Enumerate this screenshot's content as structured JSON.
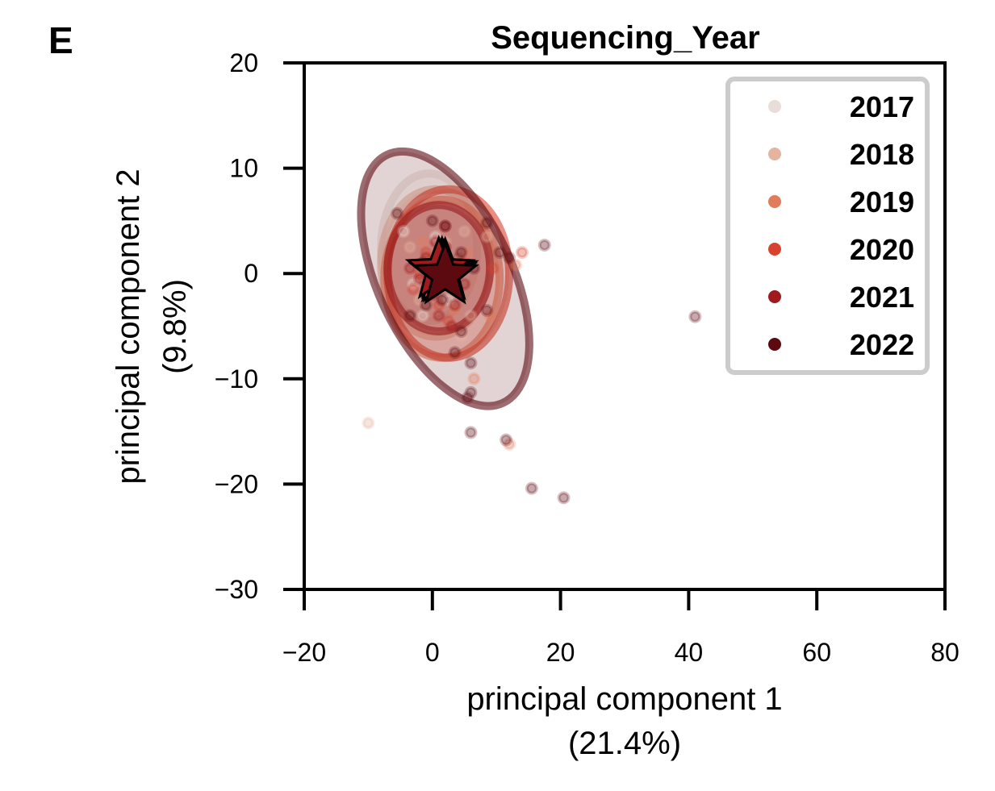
{
  "panel_label": "E",
  "chart_data": {
    "type": "scatter",
    "title": "Sequencing_Year",
    "xlabel": "principal component 1",
    "xlabel_sub": "(21.4%)",
    "ylabel": "principal component 2",
    "ylabel_sub": "(9.8%)",
    "xlim": [
      -20,
      80
    ],
    "ylim": [
      -30,
      20
    ],
    "xticks": [
      -20,
      0,
      20,
      40,
      60,
      80
    ],
    "yticks": [
      20,
      10,
      0,
      -10,
      -20,
      -30
    ],
    "xtick_labels": [
      "−20",
      "0",
      "20",
      "40",
      "60",
      "80"
    ],
    "ytick_labels": [
      "20",
      "10",
      "0",
      "−10",
      "−20",
      "−30"
    ],
    "grid": false,
    "legend_position": "top-right",
    "series": [
      {
        "name": "2017",
        "color": "#e8ddd7",
        "centroid": [
          1.5,
          0.3
        ],
        "ellipse": {
          "center": [
            -0.5,
            2.5
          ],
          "rx": 7.5,
          "ry": 7.0,
          "angle": 0
        },
        "points": [
          [
            -4.5,
            4.0
          ],
          [
            -3.0,
            -1.0
          ],
          [
            0.5,
            3.5
          ],
          [
            2.5,
            -2.5
          ],
          [
            4.0,
            1.5
          ],
          [
            -1.5,
            -4.0
          ],
          [
            1.0,
            0.5
          ]
        ]
      },
      {
        "name": "2018",
        "color": "#e4b4a0",
        "centroid": [
          1.8,
          0.0
        ],
        "ellipse": {
          "center": [
            0.5,
            1.0
          ],
          "rx": 8.5,
          "ry": 7.0,
          "angle": 0
        },
        "points": [
          [
            -10,
            -14.2
          ],
          [
            5.0,
            4.0
          ],
          [
            8.5,
            3.5
          ],
          [
            -3.5,
            2.5
          ],
          [
            6.0,
            -4.0
          ],
          [
            2.0,
            3.0
          ],
          [
            -2.0,
            -2.5
          ],
          [
            4.5,
            -6.0
          ]
        ]
      },
      {
        "name": "2019",
        "color": "#e27b5c",
        "centroid": [
          2.0,
          0.2
        ],
        "ellipse": {
          "center": [
            1.5,
            -0.5
          ],
          "rx": 9.0,
          "ry": 7.5,
          "angle": 0
        },
        "points": [
          [
            6.5,
            -10.0
          ],
          [
            12.0,
            -16.2
          ],
          [
            9.0,
            -4.0
          ],
          [
            13.0,
            0.8
          ],
          [
            -1.5,
            3.0
          ],
          [
            3.5,
            -3.5
          ],
          [
            0.0,
            1.5
          ],
          [
            5.5,
            2.0
          ]
        ]
      },
      {
        "name": "2020",
        "color": "#d8432f",
        "centroid": [
          1.5,
          0.0
        ],
        "ellipse": {
          "center": [
            2.5,
            0.0
          ],
          "rx": 9.5,
          "ry": 8.0,
          "angle": 0
        },
        "points": [
          [
            -2.0,
            0.0
          ],
          [
            0.0,
            -2.0
          ],
          [
            2.0,
            2.5
          ],
          [
            4.0,
            -1.5
          ],
          [
            1.0,
            -3.0
          ],
          [
            -1.0,
            2.0
          ],
          [
            3.0,
            0.5
          ],
          [
            -3.0,
            -1.5
          ],
          [
            5.0,
            1.0
          ],
          [
            2.5,
            -4.5
          ],
          [
            9.5,
            0.5
          ],
          [
            14.0,
            2.0
          ]
        ]
      },
      {
        "name": "2021",
        "color": "#a11a1d",
        "centroid": [
          1.0,
          0.3
        ],
        "ellipse": {
          "center": [
            1.0,
            0.5
          ],
          "rx": 8.0,
          "ry": 6.0,
          "angle": 0
        },
        "points": [
          [
            -1.0,
            1.5
          ],
          [
            1.0,
            -0.5
          ],
          [
            2.5,
            0.5
          ],
          [
            0.0,
            -2.0
          ],
          [
            3.5,
            -3.0
          ],
          [
            -2.0,
            -0.5
          ],
          [
            2.0,
            2.5
          ],
          [
            1.0,
            -4.0
          ],
          [
            4.0,
            1.5
          ],
          [
            -3.5,
            0.5
          ],
          [
            3.0,
            -5.0
          ],
          [
            0.5,
            3.0
          ],
          [
            5.0,
            -1.0
          ],
          [
            2.0,
            4.5
          ]
        ]
      },
      {
        "name": "2022",
        "color": "#5c0a10",
        "centroid": [
          2.0,
          -0.2
        ],
        "ellipse": {
          "center": [
            2.0,
            -0.5
          ],
          "rx": 10.5,
          "ry": 13.0,
          "angle": -25
        },
        "points": [
          [
            41,
            -4.1
          ],
          [
            17.5,
            2.7
          ],
          [
            20.5,
            -21.3
          ],
          [
            15.5,
            -20.4
          ],
          [
            11.5,
            -15.8
          ],
          [
            6.0,
            -15.1
          ],
          [
            5.5,
            -11.8
          ],
          [
            6.0,
            -11.3
          ],
          [
            6.0,
            -8.5
          ],
          [
            8.5,
            4.8
          ],
          [
            -5.5,
            5.7
          ],
          [
            0.0,
            5.0
          ],
          [
            2.0,
            4.5
          ],
          [
            -1.0,
            -3.0
          ],
          [
            3.5,
            -7.5
          ],
          [
            4.5,
            -5.5
          ],
          [
            8.5,
            -3.5
          ],
          [
            10.5,
            2.0
          ],
          [
            12.0,
            1.5
          ],
          [
            -3.5,
            -4.0
          ],
          [
            1.5,
            -2.5
          ],
          [
            4.5,
            2.0
          ],
          [
            -1.5,
            1.0
          ],
          [
            6.5,
            0.5
          ]
        ]
      }
    ]
  }
}
